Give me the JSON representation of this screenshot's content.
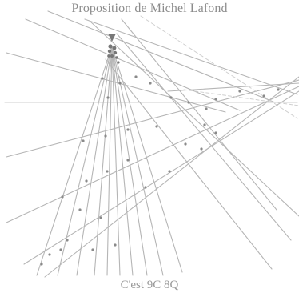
{
  "title": "Proposition de Michel Lafond",
  "caption": "C'est 9C 8Q",
  "colors": {
    "line": "#b5b5b5",
    "dash": "#cfcfcf",
    "dot": "#8a8a8a",
    "apex": "#777777",
    "text": "#8c8c8c"
  }
}
